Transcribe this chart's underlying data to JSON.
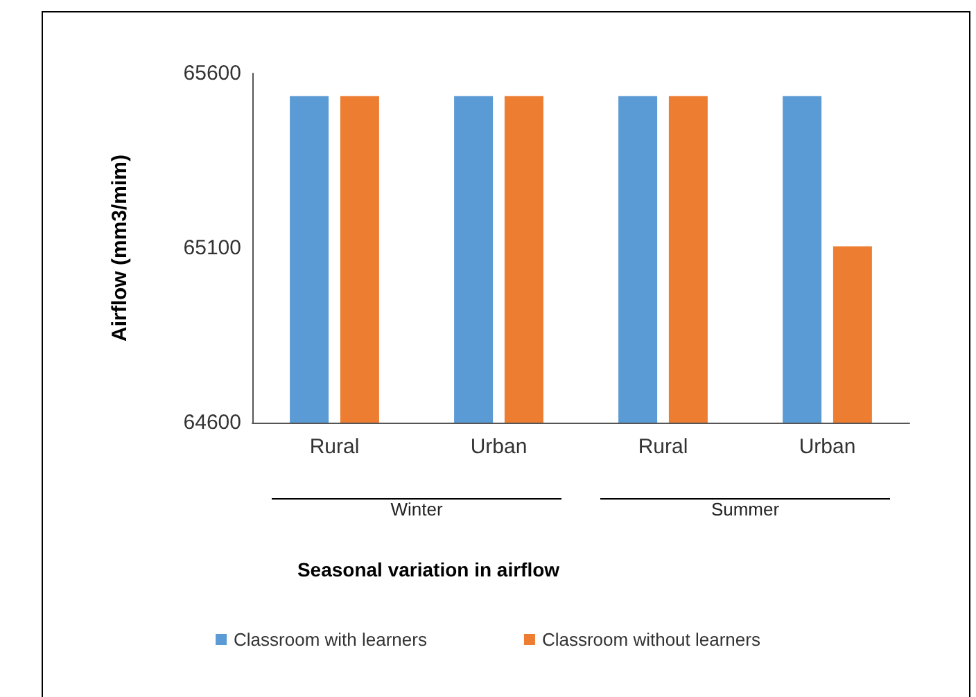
{
  "chart_data": {
    "type": "bar",
    "categories": [
      "Rural",
      "Urban",
      "Rural",
      "Urban"
    ],
    "series": [
      {
        "name": "Classroom with learners",
        "color": "#5b9bd5",
        "values": [
          65535,
          65535,
          65535,
          65535
        ]
      },
      {
        "name": "Classroom without learners",
        "color": "#ed7d31",
        "values": [
          65535,
          65535,
          65535,
          65105
        ]
      }
    ],
    "ylim": [
      64600,
      65600
    ],
    "yticks": [
      64600,
      65100,
      65600
    ],
    "ylabel": "Airflow (mm3/mim)",
    "annotations": [
      "Winter",
      "Summer",
      "Seasonal variation in airflow"
    ],
    "grid": false,
    "legend": "bottom"
  }
}
